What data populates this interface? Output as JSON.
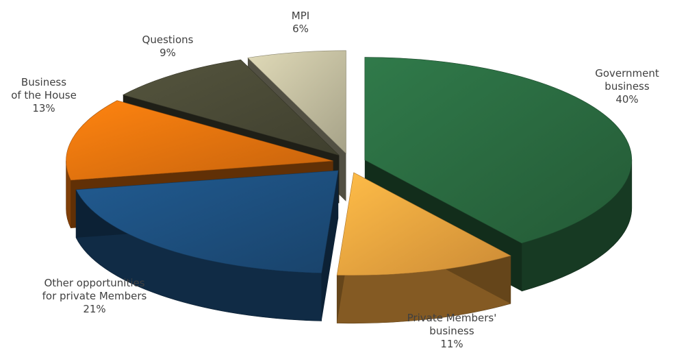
{
  "chart_data": {
    "type": "pie",
    "variant": "exploded 3D pie",
    "slices": [
      {
        "label_lines": [
          "Government",
          "business"
        ],
        "value_text": "40%",
        "value": 40,
        "color": "#2a6a40"
      },
      {
        "label_lines": [
          "Private Members'",
          "business"
        ],
        "value_text": "11%",
        "value": 11,
        "color": "#f0a43f"
      },
      {
        "label_lines": [
          "Other opportunities",
          "for private Members"
        ],
        "value_text": "21%",
        "value": 21,
        "color": "#1d4f7e"
      },
      {
        "label_lines": [
          "Business",
          "of the House"
        ],
        "value_text": "13%",
        "value": 13,
        "color": "#e8730e"
      },
      {
        "label_lines": [
          "Questions"
        ],
        "value_text": "9%",
        "value": 9,
        "color": "#4a4a36"
      },
      {
        "label_lines": [
          "MPI"
        ],
        "value_text": "6%",
        "value": 6,
        "color": "#c3bea0"
      }
    ]
  }
}
